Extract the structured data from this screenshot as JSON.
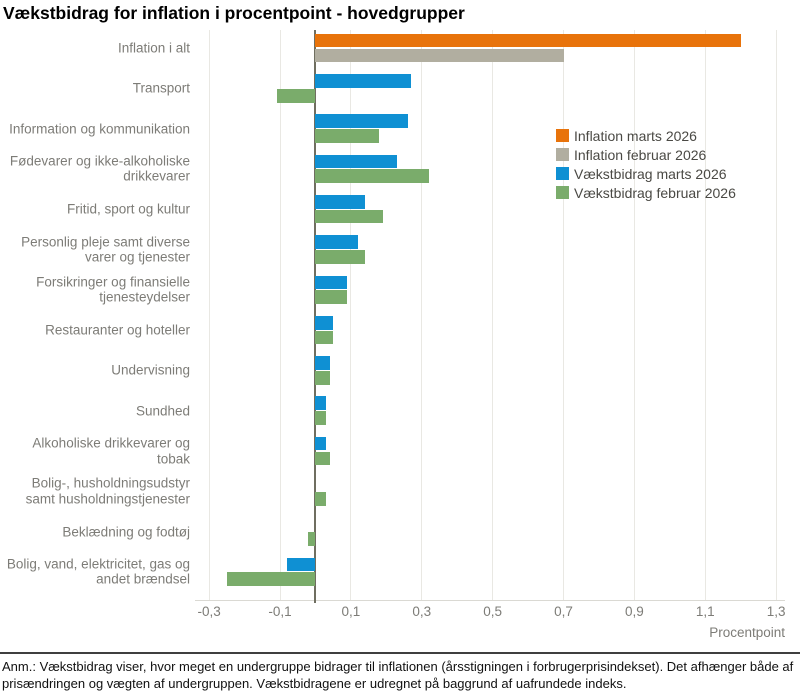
{
  "title": "Vækstbidrag for inflation i procentpoint - hovedgrupper",
  "footnote": "Anm.: Vækstbidrag viser, hvor meget en undergruppe bidrager til inflationen (årsstigningen i forbrugerprisindekset). Det afhænger både af prisændringen og vægten af undergruppen. Vækstbidragene er udregnet på baggrund af uafrundede indeks.",
  "colors": {
    "background": "#FFFFFF",
    "grid": "#E9E8E3",
    "zero_line": "#6F6E60",
    "plot_bottom_line": "#DAD9D3",
    "text_muted": "#7D7C77",
    "legend_text": "#4A4944",
    "footnote_text": "#111111",
    "divider": "#3F3F3F",
    "title_text": "#000000",
    "orange": "#E8730B",
    "gray": "#B1AEA0",
    "blue": "#0F90D3",
    "green": "#7AAC6B"
  },
  "chart_data": {
    "type": "bar",
    "orientation": "horizontal",
    "title": "Vækstbidrag for inflation i procentpoint - hovedgrupper",
    "xlabel": "Procentpoint",
    "xlim": [
      -0.34,
      1.325
    ],
    "grid": true,
    "legend_position": "inside-top-right",
    "categories": [
      "Inflation i alt",
      "Transport",
      "Information og kommunikation",
      "Fødevarer og ikke-alkoholiske drikkevarer",
      "Fritid, sport og kultur",
      "Personlig pleje samt diverse varer og tjenester",
      "Forsikringer og finansielle tjenesteydelser",
      "Restauranter og hoteller",
      "Undervisning",
      "Sundhed",
      "Alkoholiske drikkevarer og tobak",
      "Bolig-, husholdningsudstyr samt husholdningstjenester",
      "Beklædning og fodtøj",
      "Bolig, vand, elektricitet, gas og andet brændsel"
    ],
    "series": [
      {
        "name": "Inflation marts 2026",
        "color": "#E8730B",
        "values": [
          1.2,
          null,
          null,
          null,
          null,
          null,
          null,
          null,
          null,
          null,
          null,
          null,
          null,
          null
        ]
      },
      {
        "name": "Inflation februar 2026",
        "color": "#B1AEA0",
        "values": [
          0.7,
          null,
          null,
          null,
          null,
          null,
          null,
          null,
          null,
          null,
          null,
          null,
          null,
          null
        ]
      },
      {
        "name": "Vækstbidrag marts 2026",
        "color": "#0F90D3",
        "values": [
          null,
          0.27,
          0.26,
          0.23,
          0.14,
          0.12,
          0.09,
          0.05,
          0.04,
          0.03,
          0.03,
          0.0,
          0.0,
          -0.08
        ]
      },
      {
        "name": "Vækstbidrag februar 2026",
        "color": "#7AAC6B",
        "values": [
          null,
          -0.11,
          0.18,
          0.32,
          0.19,
          0.14,
          0.09,
          0.05,
          0.04,
          0.03,
          0.04,
          0.03,
          -0.02,
          -0.25
        ]
      }
    ],
    "x_ticks": [
      {
        "value": -0.3,
        "label": "-0,3"
      },
      {
        "value": -0.1,
        "label": "-0,1"
      },
      {
        "value": 0.1,
        "label": "0,1"
      },
      {
        "value": 0.3,
        "label": "0,3"
      },
      {
        "value": 0.5,
        "label": "0,5"
      },
      {
        "value": 0.7,
        "label": "0,7"
      },
      {
        "value": 0.9,
        "label": "0,9"
      },
      {
        "value": 1.1,
        "label": "1,1"
      },
      {
        "value": 1.3,
        "label": "1,3"
      }
    ]
  }
}
